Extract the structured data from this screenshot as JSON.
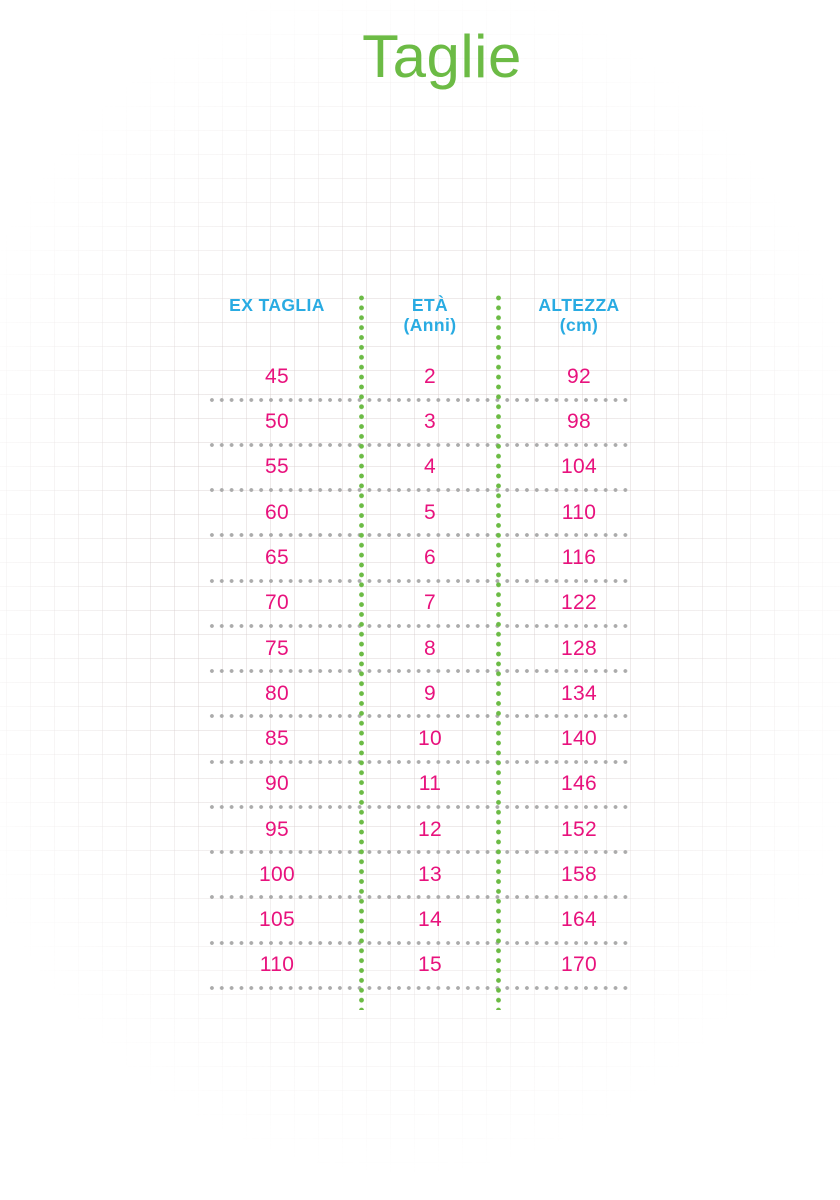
{
  "title": "Taglie",
  "colors": {
    "green": "#6CBB45",
    "cyan": "#29ABE2",
    "pink": "#E8127D",
    "gray_dot": "#ABABAB",
    "grid_line": "#EDE6E6"
  },
  "table": {
    "columns": [
      {
        "label": "EX TAGLIA",
        "sublabel": ""
      },
      {
        "label": "ETÀ",
        "sublabel": "(Anni)"
      },
      {
        "label": "ALTEZZA",
        "sublabel": "(cm)"
      }
    ],
    "rows": [
      [
        "45",
        "2",
        "92"
      ],
      [
        "50",
        "3",
        "98"
      ],
      [
        "55",
        "4",
        "104"
      ],
      [
        "60",
        "5",
        "110"
      ],
      [
        "65",
        "6",
        "116"
      ],
      [
        "70",
        "7",
        "122"
      ],
      [
        "75",
        "8",
        "128"
      ],
      [
        "80",
        "9",
        "134"
      ],
      [
        "85",
        "10",
        "140"
      ],
      [
        "90",
        "11",
        "146"
      ],
      [
        "95",
        "12",
        "152"
      ],
      [
        "100",
        "13",
        "158"
      ],
      [
        "105",
        "14",
        "164"
      ],
      [
        "110",
        "15",
        "170"
      ]
    ]
  },
  "chart_data": {
    "type": "table",
    "title": "Taglie",
    "columns": [
      "EX TAGLIA",
      "ETÀ (Anni)",
      "ALTEZZA (cm)"
    ],
    "rows": [
      [
        45,
        2,
        92
      ],
      [
        50,
        3,
        98
      ],
      [
        55,
        4,
        104
      ],
      [
        60,
        5,
        110
      ],
      [
        65,
        6,
        116
      ],
      [
        70,
        7,
        122
      ],
      [
        75,
        8,
        128
      ],
      [
        80,
        9,
        134
      ],
      [
        85,
        10,
        140
      ],
      [
        90,
        11,
        146
      ],
      [
        95,
        12,
        152
      ],
      [
        100,
        13,
        158
      ],
      [
        105,
        14,
        164
      ],
      [
        110,
        15,
        170
      ]
    ],
    "layout_hints": {
      "column_separators": "green dotted vertical lines",
      "row_separators": "gray dotted horizontal lines",
      "background": "faint squared paper grid"
    }
  }
}
